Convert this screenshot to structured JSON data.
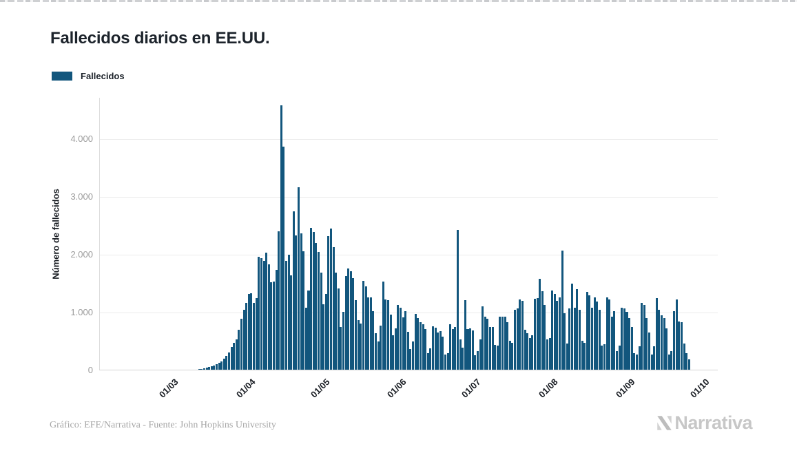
{
  "page": {
    "title": "Fallecidos diarios en EE.UU."
  },
  "legend": {
    "label": "Fallecidos",
    "color": "#12567D"
  },
  "footer": {
    "credit": "Gráfico: EFE/Narrativa - Fuente: John Hopkins University",
    "brand": "Narrativa"
  },
  "chart_data": {
    "type": "bar",
    "title": "Fallecidos diarios en EE.UU.",
    "xlabel": "",
    "ylabel": "Número de fallecidos",
    "legend_position": "top-left",
    "grid": true,
    "bar_color": "#12567D",
    "ylim": [
      0,
      4720
    ],
    "y_ticks": {
      "labels": [
        "0",
        "1.000",
        "2.000",
        "3.000",
        "4.000"
      ],
      "values": [
        0,
        1000,
        2000,
        3000,
        4000
      ]
    },
    "x_ticks": {
      "labels": [
        "01/03",
        "01/04",
        "01/05",
        "01/06",
        "01/07",
        "01/08",
        "01/09",
        "01/10"
      ],
      "day_indices": [
        15,
        46,
        76,
        107,
        137,
        168,
        199,
        229
      ]
    },
    "start_date": "2020-02-15",
    "series": [
      {
        "name": "Fallecidos",
        "values": [
          0,
          0,
          0,
          0,
          0,
          0,
          0,
          0,
          0,
          0,
          0,
          0,
          0,
          1,
          1,
          1,
          5,
          3,
          2,
          4,
          3,
          4,
          5,
          6,
          7,
          9,
          10,
          13,
          18,
          23,
          26,
          30,
          42,
          55,
          68,
          85,
          110,
          135,
          160,
          200,
          247,
          315,
          400,
          480,
          540,
          700,
          900,
          1050,
          1170,
          1320,
          1330,
          1165,
          1255,
          1970,
          1940,
          1900,
          2035,
          1830,
          1530,
          1540,
          1740,
          2410,
          4590,
          3870,
          1890,
          2000,
          1640,
          2750,
          2340,
          3170,
          2370,
          2060,
          1090,
          1380,
          2470,
          2390,
          2200,
          2050,
          1690,
          1150,
          1320,
          2330,
          2450,
          2130,
          1690,
          1420,
          750,
          1010,
          1630,
          1770,
          1720,
          1600,
          1220,
          865,
          810,
          1550,
          1460,
          1260,
          1260,
          1030,
          640,
          500,
          775,
          1535,
          1225,
          1210,
          960,
          605,
          730,
          1130,
          1080,
          920,
          1030,
          670,
          375,
          500,
          980,
          905,
          840,
          800,
          710,
          300,
          380,
          765,
          740,
          650,
          675,
          580,
          270,
          295,
          800,
          720,
          755,
          2430,
          540,
          395,
          1210,
          720,
          730,
          690,
          265,
          335,
          540,
          1110,
          930,
          895,
          755,
          755,
          440,
          430,
          930,
          930,
          930,
          840,
          515,
          480,
          1050,
          1070,
          1230,
          1200,
          700,
          640,
          560,
          610,
          1245,
          1250,
          1585,
          1370,
          1130,
          540,
          560,
          1380,
          1320,
          1200,
          1260,
          2070,
          990,
          470,
          1070,
          1500,
          1080,
          1410,
          1050,
          510,
          480,
          1360,
          1300,
          1090,
          1265,
          1190,
          1050,
          430,
          450,
          1265,
          1230,
          930,
          1030,
          335,
          430,
          1090,
          1075,
          1015,
          910,
          755,
          300,
          275,
          415,
          1170,
          1130,
          910,
          655,
          275,
          415,
          1250,
          1050,
          955,
          910,
          730,
          275,
          335,
          1030,
          1230,
          850,
          830,
          460,
          300,
          190
        ]
      }
    ]
  }
}
